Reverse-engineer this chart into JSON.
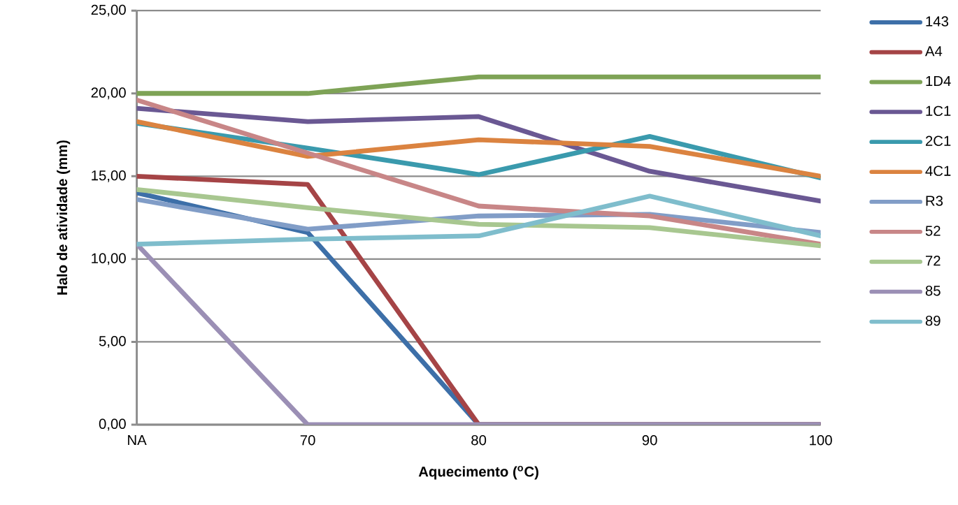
{
  "chart_data": {
    "type": "line",
    "xlabel": "Aquecimento ($^{o}$C)",
    "ylabel": "Halo de atividade (mm)",
    "categories": [
      "NA",
      "70",
      "80",
      "90",
      "100"
    ],
    "ylim": [
      0,
      25
    ],
    "yticks": [
      {
        "value": 0,
        "label": "0,00"
      },
      {
        "value": 5,
        "label": "5,00"
      },
      {
        "value": 10,
        "label": "10,00"
      },
      {
        "value": 15,
        "label": "15,00"
      },
      {
        "value": 20,
        "label": "20,00"
      },
      {
        "value": 25,
        "label": "25,00"
      }
    ],
    "grid": "y",
    "legend": "right",
    "marker": "none",
    "line_style": "solid",
    "series": [
      {
        "name": "143",
        "color": "#3d6fa8",
        "values": [
          14.0,
          11.6,
          0,
          0,
          0
        ]
      },
      {
        "name": "A4",
        "color": "#a54446",
        "values": [
          15.0,
          14.5,
          0,
          0,
          0
        ]
      },
      {
        "name": "1D4",
        "color": "#7ea356",
        "values": [
          20.0,
          20.0,
          21.0,
          21.0,
          21.0
        ]
      },
      {
        "name": "1C1",
        "color": "#6a5893",
        "values": [
          19.1,
          18.3,
          18.6,
          15.3,
          13.5
        ]
      },
      {
        "name": "2C1",
        "color": "#3a9aad",
        "values": [
          18.2,
          16.7,
          15.1,
          17.4,
          14.9
        ]
      },
      {
        "name": "4C1",
        "color": "#db8340",
        "values": [
          18.3,
          16.2,
          17.2,
          16.8,
          15.0
        ]
      },
      {
        "name": "R3",
        "color": "#819dc7",
        "values": [
          13.6,
          11.8,
          12.6,
          12.7,
          11.6
        ]
      },
      {
        "name": "52",
        "color": "#c88687",
        "values": [
          19.6,
          16.4,
          13.2,
          12.6,
          10.9
        ]
      },
      {
        "name": "72",
        "color": "#a8c790",
        "values": [
          14.2,
          13.1,
          12.1,
          11.9,
          10.8
        ]
      },
      {
        "name": "85",
        "color": "#9b8fb5",
        "values": [
          10.9,
          0,
          0,
          0,
          0
        ]
      },
      {
        "name": "89",
        "color": "#7fbdcc",
        "values": [
          10.9,
          11.2,
          11.4,
          13.8,
          11.4
        ]
      }
    ]
  }
}
